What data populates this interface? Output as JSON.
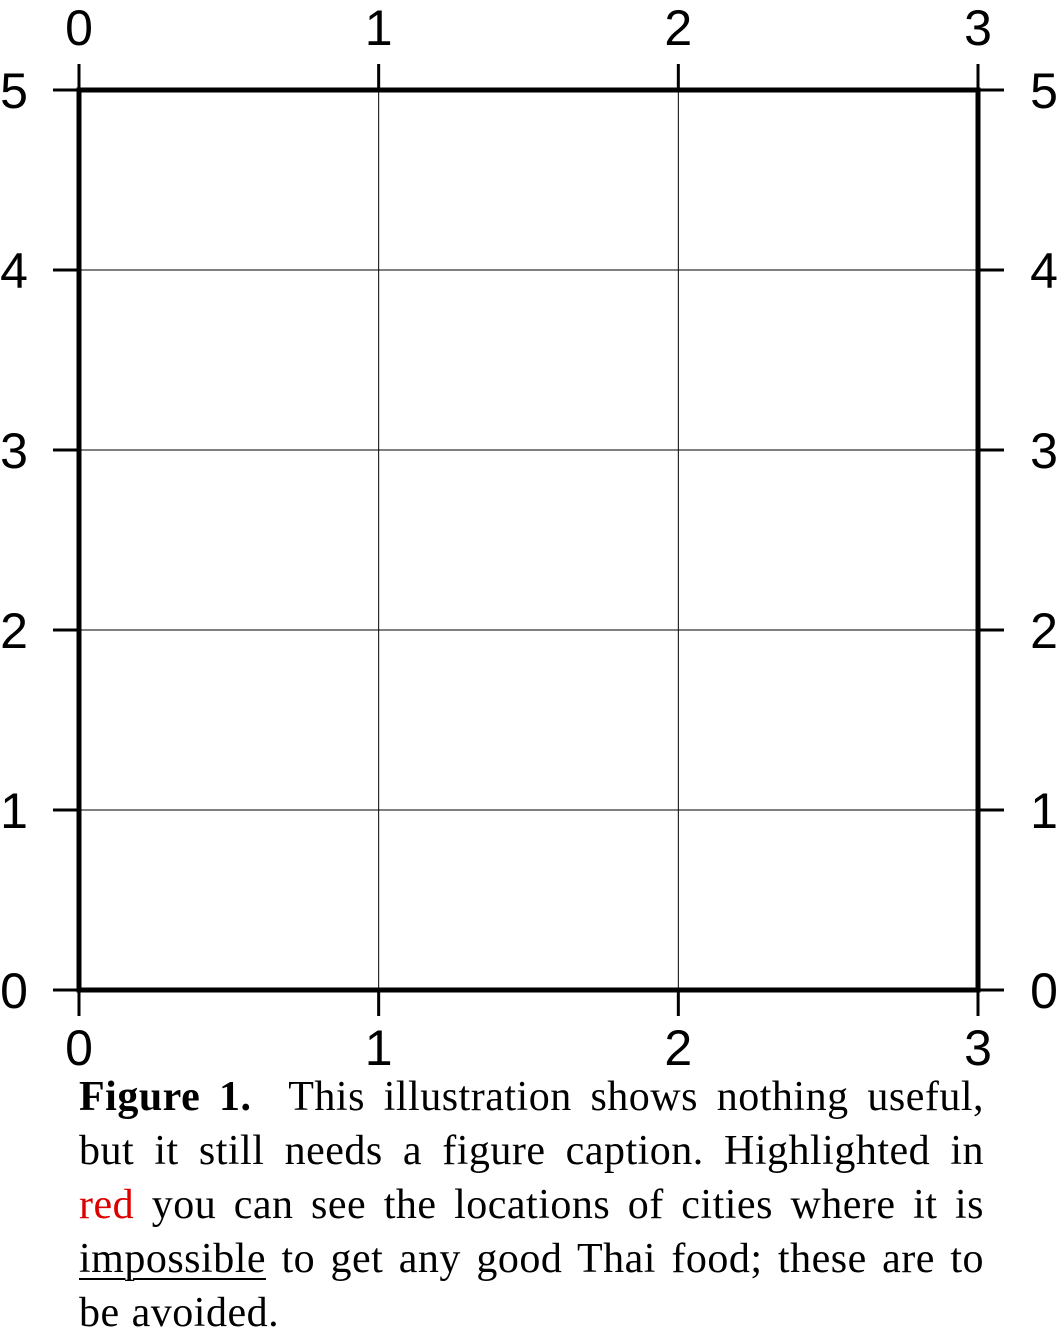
{
  "chart_data": {
    "type": "scatter",
    "title": "",
    "xlabel": "",
    "ylabel": "",
    "xlim": [
      0,
      3
    ],
    "ylim": [
      0,
      5
    ],
    "xticks": [
      0,
      1,
      2,
      3
    ],
    "yticks": [
      0,
      1,
      2,
      3,
      4,
      5
    ],
    "grid": true,
    "tick_labels_on": [
      "bottom",
      "top",
      "left",
      "right"
    ],
    "series": []
  },
  "caption": {
    "label": "Figure 1.",
    "part1": "This illustration shows nothing useful, but it still needs a figure caption. Highlighted in",
    "highlight": "red",
    "highlight_color": "#dd0000",
    "part2": "you can see the locations of cities where it is",
    "underlined": "impossible",
    "part3": "to get any good Thai food; these are to be avoided."
  }
}
